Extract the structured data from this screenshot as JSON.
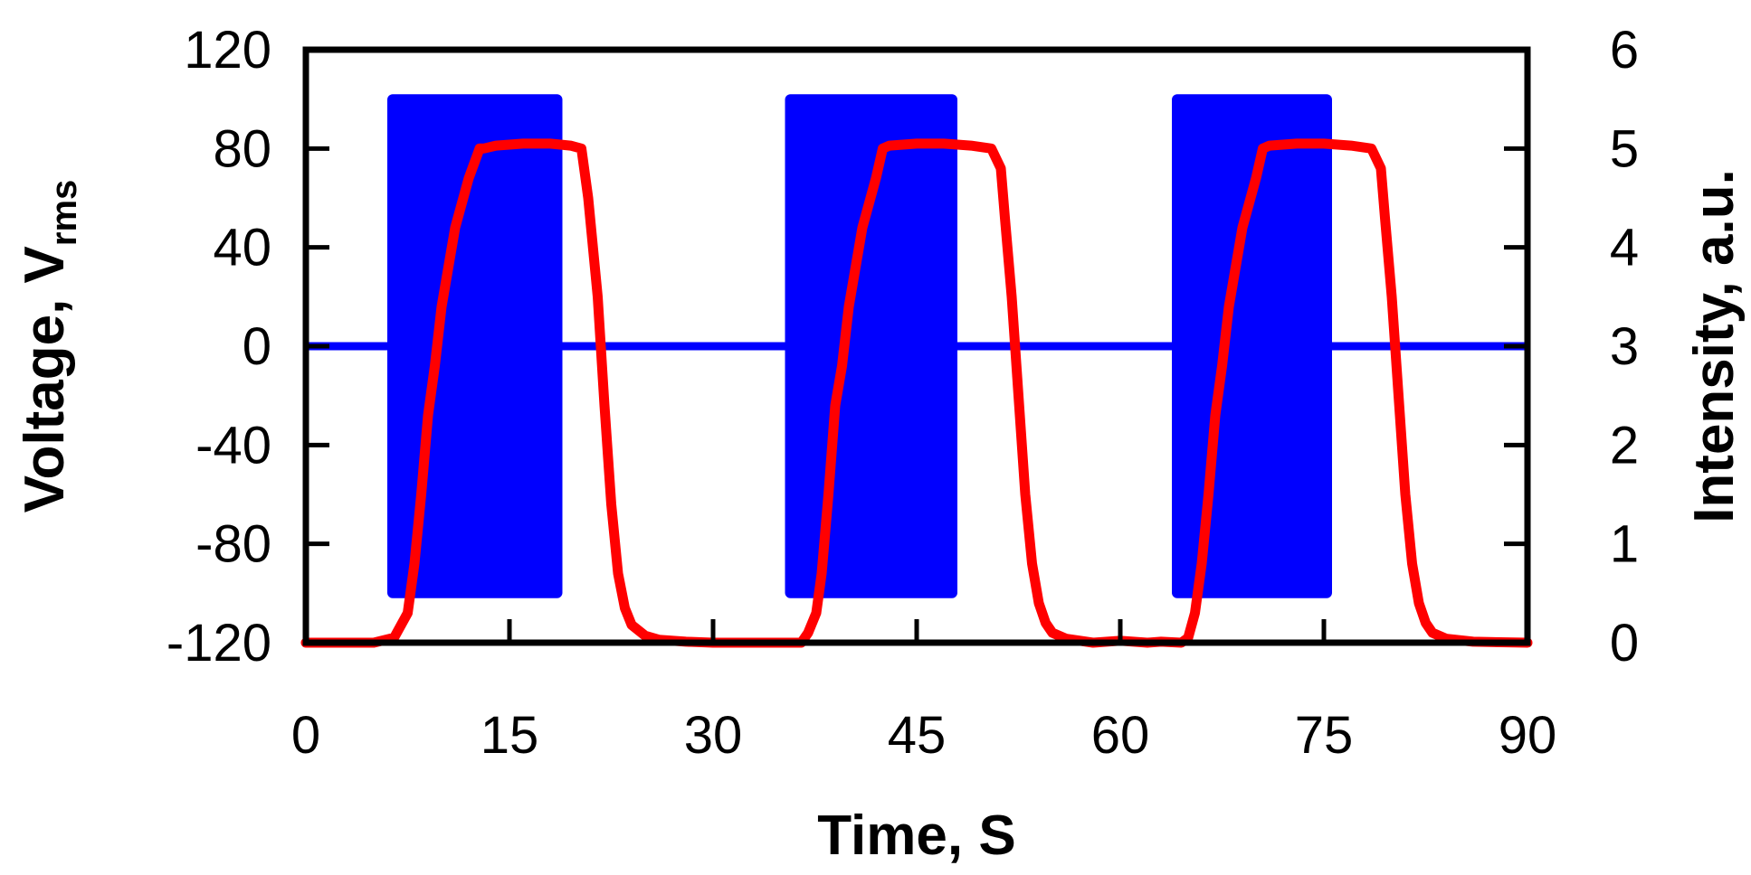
{
  "chart_data": {
    "type": "line",
    "xlabel": "Time, S",
    "ylabel_left": {
      "main": "Voltage, V",
      "subscript": "rms"
    },
    "ylabel_right": "Intensity, a.u.",
    "xlim": [
      0,
      90
    ],
    "ylim_left": [
      -120,
      120
    ],
    "ylim_right": [
      0,
      6
    ],
    "xticks": [
      "0",
      "15",
      "30",
      "45",
      "60",
      "75",
      "90"
    ],
    "yticks_left": [
      "-120",
      "-80",
      "-40",
      "0",
      "40",
      "80",
      "120"
    ],
    "yticks_right": [
      "0",
      "1",
      "2",
      "3",
      "4",
      "5",
      "6"
    ],
    "colors": {
      "voltage": "#0000ff",
      "intensity": "#ff0000",
      "axes": "#000000"
    },
    "series": [
      {
        "name": "Voltage",
        "axis": "left",
        "kind": "ac_bursts",
        "baseline": 0,
        "amplitude": [
          -102,
          102
        ],
        "bursts": [
          [
            6,
            18.9
          ],
          [
            35.3,
            48
          ],
          [
            63.8,
            75.6
          ]
        ]
      },
      {
        "name": "Intensity",
        "axis": "right",
        "x": [
          0,
          5,
          6.5,
          7.5,
          8,
          8.5,
          9,
          9.5,
          10,
          11,
          12,
          12.8,
          13.1,
          14,
          16,
          18,
          19.5,
          20.3,
          20.8,
          21.5,
          22,
          22.5,
          23,
          23.5,
          24,
          25,
          26,
          28,
          30,
          33,
          36,
          36.5,
          37,
          37.6,
          38,
          38.5,
          39,
          39.5,
          40,
          41,
          42,
          42.5,
          43,
          45,
          47,
          49,
          50.5,
          51.2,
          51.5,
          52,
          52.5,
          53,
          53.5,
          54,
          54.5,
          55,
          56,
          58,
          60,
          62,
          63,
          64.5,
          65,
          65.5,
          66,
          66.5,
          67,
          67.5,
          68,
          69,
          70,
          70.5,
          71,
          73,
          75,
          77,
          78.5,
          79.2,
          79.5,
          80,
          80.5,
          81,
          81.5,
          82,
          82.5,
          83,
          84,
          86,
          90
        ],
        "y": [
          0,
          0,
          0.05,
          0.3,
          0.8,
          1.5,
          2.3,
          2.8,
          3.4,
          4.2,
          4.7,
          5,
          5,
          5.03,
          5.05,
          5.05,
          5.03,
          5,
          4.5,
          3.5,
          2.4,
          1.4,
          0.7,
          0.35,
          0.18,
          0.07,
          0.03,
          0.01,
          0,
          0,
          0,
          0,
          0.1,
          0.3,
          0.7,
          1.5,
          2.4,
          2.8,
          3.4,
          4.2,
          4.7,
          5,
          5.03,
          5.05,
          5.05,
          5.03,
          5,
          4.8,
          4.3,
          3.5,
          2.5,
          1.5,
          0.8,
          0.4,
          0.2,
          0.1,
          0.04,
          0,
          0.02,
          0,
          0.01,
          0,
          0.05,
          0.3,
          0.8,
          1.5,
          2.3,
          2.8,
          3.4,
          4.2,
          4.7,
          5,
          5.03,
          5.05,
          5.05,
          5.03,
          5,
          4.8,
          4.3,
          3.5,
          2.5,
          1.5,
          0.8,
          0.4,
          0.2,
          0.1,
          0.04,
          0.01,
          0
        ]
      }
    ]
  }
}
